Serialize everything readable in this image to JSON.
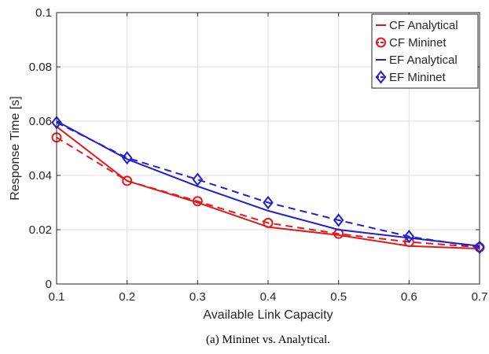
{
  "chart_data": {
    "type": "line",
    "xlabel": "Available Link Capacity",
    "ylabel": "Response Time [s]",
    "xlim": [
      0.1,
      0.7
    ],
    "ylim": [
      0,
      0.1
    ],
    "xticks": [
      "0.1",
      "0.2",
      "0.3",
      "0.4",
      "0.5",
      "0.6",
      "0.7"
    ],
    "yticks": [
      "0",
      "0.02",
      "0.04",
      "0.06",
      "0.08",
      "0.1"
    ],
    "grid": true,
    "legend_position": "top-right",
    "x": [
      0.1,
      0.2,
      0.3,
      0.4,
      0.5,
      0.6,
      0.7
    ],
    "series": [
      {
        "name": "CF Analytical",
        "color": "#e31a1c",
        "style": "solid",
        "marker": "none",
        "values": [
          0.058,
          0.038,
          0.03,
          0.021,
          0.018,
          0.014,
          0.013
        ]
      },
      {
        "name": "CF Mininet",
        "color": "#e31a1c",
        "style": "dashed",
        "marker": "circle",
        "values": [
          0.054,
          0.038,
          0.0305,
          0.0225,
          0.0185,
          0.0155,
          0.0135
        ]
      },
      {
        "name": "EF Analytical",
        "color": "#1f1fd6",
        "style": "solid",
        "marker": "none",
        "values": [
          0.06,
          0.046,
          0.036,
          0.027,
          0.02,
          0.017,
          0.014
        ]
      },
      {
        "name": "EF Mininet",
        "color": "#1f1fd6",
        "style": "dashed",
        "marker": "diamond",
        "values": [
          0.0595,
          0.0465,
          0.0385,
          0.03,
          0.0235,
          0.0175,
          0.0135
        ]
      }
    ]
  },
  "caption": "(a) Mininet vs. Analytical."
}
